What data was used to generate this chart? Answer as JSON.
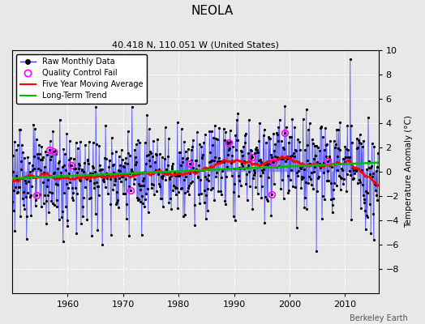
{
  "title": "NEOLA",
  "subtitle": "40.418 N, 110.051 W (United States)",
  "ylabel": "Temperature Anomaly (°C)",
  "credit": "Berkeley Earth",
  "ylim": [
    -10,
    10
  ],
  "yticks": [
    -8,
    -6,
    -4,
    -2,
    0,
    2,
    4,
    6,
    8,
    10
  ],
  "xlim_start": 1950,
  "xlim_end": 2016,
  "xticks": [
    1960,
    1970,
    1980,
    1990,
    2000,
    2010
  ],
  "blue_color": "#3333FF",
  "red_color": "#FF0000",
  "green_color": "#00BB00",
  "magenta_color": "#FF00FF",
  "bg_color": "#E8E8E8",
  "grid_color": "#FFFFFF"
}
